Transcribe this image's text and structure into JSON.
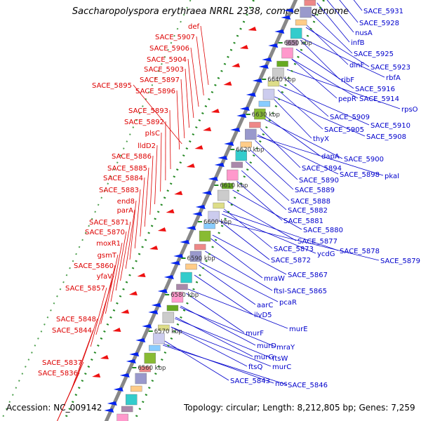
{
  "title": "Saccharopolyspora erythraea NRRL 2338, complete genome",
  "footer": {
    "accession": "Accession: NC_009142",
    "summary": "Topology: circular; Length: 8,212,805 bp; Genes: 7,259"
  },
  "colors": {
    "left_labels": "#dd0000",
    "right_labels": "#0000cc",
    "backbone": "#888888",
    "dots": "#228822"
  },
  "kbp_markers": [
    "6560 kbp",
    "6570 kbp",
    "6580 kbp",
    "6590 kbp",
    "6600 kbp",
    "6610 kbp",
    "6620 kbp",
    "6630 kbp",
    "6640 kbp",
    "6650 kbp"
  ],
  "left_genes": [
    "def",
    "SACE_5907",
    "SACE_5906",
    "SACE_5904",
    "SACE_5903",
    "SACE_5897",
    "SACE_5895",
    "SACE_5896",
    "SACE_5893",
    "SACE_5892",
    "plsC",
    "lldD2",
    "SACE_5886",
    "SACE_5885",
    "SACE_5884",
    "SACE_5883",
    "end8",
    "parA",
    "SACE_5871",
    "SACE_5870",
    "moxR1",
    "gsmT",
    "SACE_5860",
    "yfaV",
    "SACE_5857",
    "SACE_5848",
    "SACE_5844",
    "SACE_5837",
    "SACE_5836"
  ],
  "right_genes": [
    "SACE_5931",
    "SACE_5928",
    "nusA",
    "infB",
    "SACE_5925",
    "dinF",
    "SACE_5923",
    "rbfA",
    "ribF",
    "SACE_5916",
    "pepR",
    "SACE_5914",
    "rpsO",
    "SACE_5909",
    "SACE_5910",
    "SACE_5905",
    "SACE_5908",
    "thyX",
    "dapA",
    "SACE_5900",
    "SACE_5894",
    "SACE_5898",
    "pkaI",
    "SACE_5890",
    "SACE_5889",
    "SACE_5888",
    "SACE_5882",
    "SACE_5881",
    "SACE_5880",
    "SACE_5877",
    "ycdG",
    "SACE_5873",
    "SACE_5878",
    "SACE_5872",
    "SACE_5879",
    "SACE_5867",
    "mraW",
    "ftsI-SACE_5865",
    "pcaR",
    "aarC",
    "ilvD5",
    "murE",
    "murF",
    "mraY",
    "murD",
    "murG",
    "ftsW",
    "ftsQ",
    "murC",
    "SACE_5843",
    "nos",
    "SACE_5846"
  ]
}
